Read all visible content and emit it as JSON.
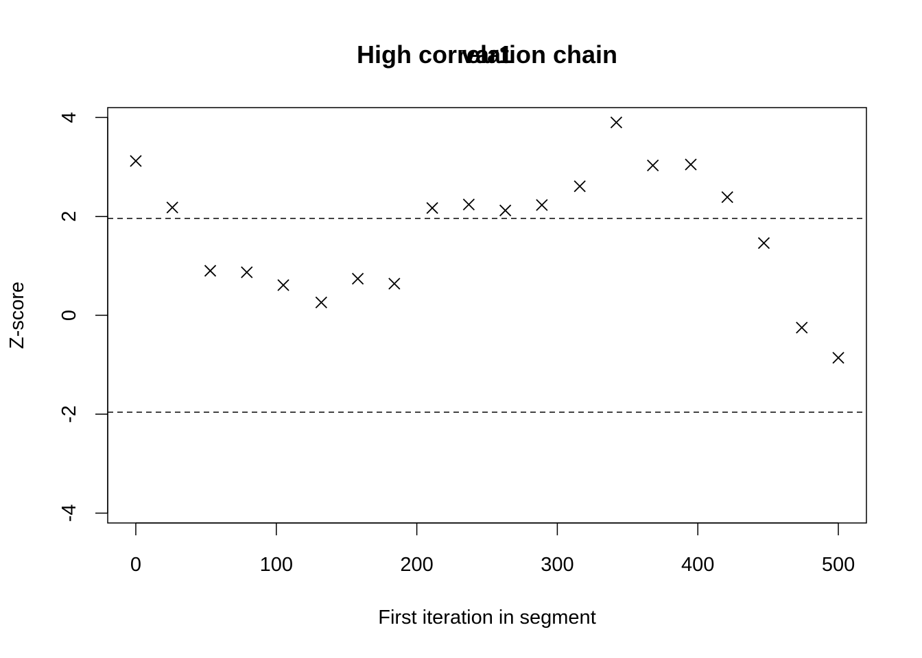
{
  "chart_data": {
    "type": "scatter",
    "title": "High correlation chain",
    "title_overlay": "var1",
    "xlabel": "First iteration in segment",
    "ylabel": "Z-score",
    "xlim": [
      -20,
      520
    ],
    "ylim": [
      -4.2,
      4.2
    ],
    "xticks": [
      0,
      100,
      200,
      300,
      400,
      500
    ],
    "yticks": [
      -4,
      -2,
      0,
      2,
      4
    ],
    "hlines": [
      1.96,
      -1.96
    ],
    "marker": "x",
    "x": [
      0,
      26,
      53,
      79,
      105,
      132,
      158,
      184,
      211,
      237,
      263,
      289,
      316,
      342,
      368,
      395,
      421,
      447,
      474,
      500
    ],
    "y": [
      3.12,
      2.18,
      0.9,
      0.87,
      0.61,
      0.26,
      0.74,
      0.64,
      2.17,
      2.24,
      2.12,
      2.23,
      2.61,
      3.9,
      3.03,
      3.05,
      2.39,
      1.46,
      -0.25,
      -0.86
    ]
  }
}
